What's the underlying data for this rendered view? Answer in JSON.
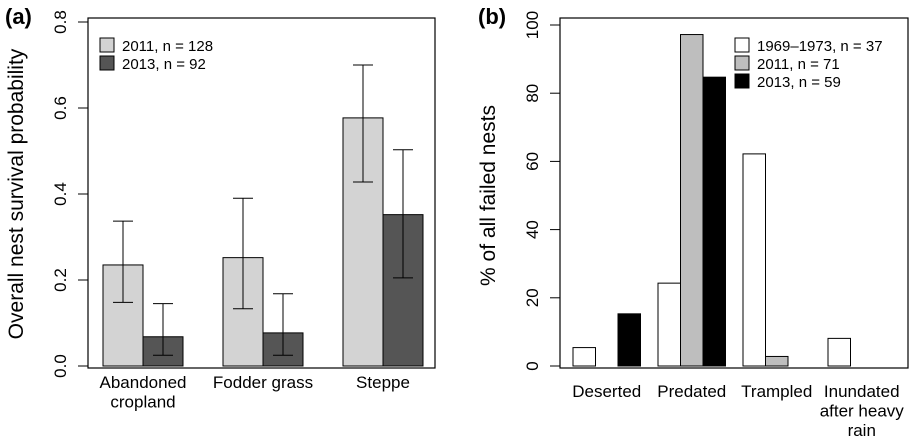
{
  "chart_data": [
    {
      "type": "bar",
      "panel_label": "(a)",
      "ylabel": "Overall nest survival probability",
      "categories": [
        "Abandoned\ncropland",
        "Fodder grass",
        "Steppe"
      ],
      "series": [
        {
          "name": "2011, n = 128",
          "color": "#d3d3d3",
          "values": [
            0.235,
            0.252,
            0.577
          ],
          "lower": [
            0.148,
            0.133,
            0.428
          ],
          "upper": [
            0.337,
            0.39,
            0.7
          ]
        },
        {
          "name": "2013, n = 92",
          "color": "#555555",
          "values": [
            0.068,
            0.077,
            0.352
          ],
          "lower": [
            0.025,
            0.025,
            0.205
          ],
          "upper": [
            0.145,
            0.168,
            0.503
          ]
        }
      ],
      "ylim": [
        0,
        0.8
      ],
      "yticks": [
        {
          "value": 0,
          "label": "0.0"
        },
        0.2,
        0.4,
        0.6,
        0.8
      ],
      "legend": "top-left"
    },
    {
      "type": "bar",
      "panel_label": "(b)",
      "ylabel": "% of all failed nests",
      "categories": [
        "Deserted",
        "Predated",
        "Trampled",
        "Inundated\nafter heavy\nrain"
      ],
      "series": [
        {
          "name": "1969–1973, n = 37",
          "color": "#ffffff",
          "values": [
            5.4,
            24.3,
            62.2,
            8.1
          ]
        },
        {
          "name": "2011, n = 71",
          "color": "#bebebe",
          "values": [
            0,
            97.2,
            2.8,
            0
          ]
        },
        {
          "name": "2013, n = 59",
          "color": "#000000",
          "values": [
            15.3,
            84.7,
            0,
            0
          ]
        }
      ],
      "ylim": [
        0,
        100
      ],
      "yticks": [
        0,
        20,
        40,
        60,
        80,
        100
      ],
      "legend": "top-right"
    }
  ]
}
